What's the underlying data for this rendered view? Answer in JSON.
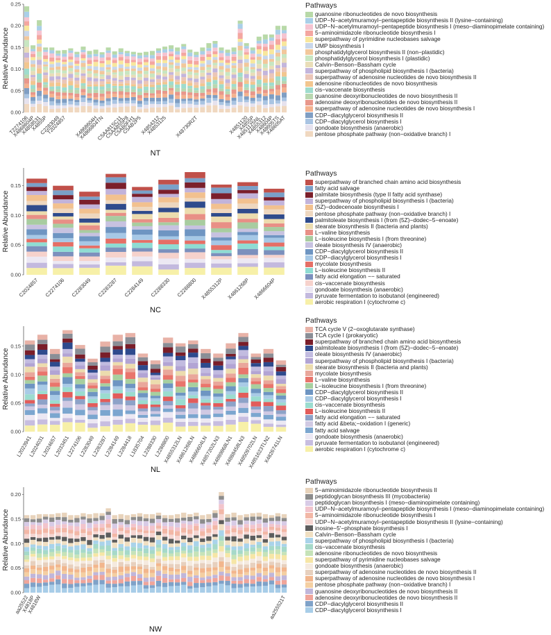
{
  "palette": [
    "#f6e7a2",
    "#c4b7dc",
    "#ebe7f3",
    "#f3cfc6",
    "#a9d7ee",
    "#6f9ec9",
    "#e48a7c",
    "#a8d8c6",
    "#92e0d6",
    "#c6c0de",
    "#82a7cc",
    "#f2a598",
    "#abd4a0",
    "#f4c98a",
    "#e3d2bd",
    "#c0d3e9",
    "#8d8d8d",
    "#ddb2b6",
    "#f2c49a",
    "#2e4b8f",
    "#7a1f2a",
    "#b65048",
    "#e8d3bb",
    "#d9d1e7"
  ],
  "panels": [
    {
      "group": "NT",
      "ylabel": "Relative Abundance",
      "y_ticks": [
        "0.00",
        "0.05",
        "0.10",
        "0.15",
        "0.20",
        "0.25"
      ],
      "legend_title": "Pathways",
      "chart_data": {
        "type": "bar",
        "stacked": true,
        "ylim": [
          0,
          0.25
        ],
        "categories": [
          "T2274106",
          "X4868604P",
          "X4858531",
          "X4855P",
          "",
          "C2283049",
          "T2024857",
          "",
          "",
          "",
          "",
          "X4868604H",
          "X4866804TN",
          "",
          "",
          "C5AA81SC11",
          "C5AAB55P8",
          "C5AB0FH1",
          "C5AB2P5",
          "",
          "",
          "X4854312",
          "X4853125",
          "",
          "",
          "",
          "",
          "X48730R2T",
          "",
          "",
          "",
          "",
          "",
          "",
          "",
          "X4851120",
          "X4855P",
          "X4851125NL",
          "X4855312",
          "X48604P",
          "X48605TS",
          "X48605AT"
        ],
        "totals": [
          0.245,
          0.155,
          0.213,
          0.15,
          0.15,
          0.143,
          0.144,
          0.148,
          0.14,
          0.152,
          0.142,
          0.145,
          0.139,
          0.15,
          0.141,
          0.148,
          0.142,
          0.14,
          0.138,
          0.14,
          0.142,
          0.148,
          0.152,
          0.155,
          0.15,
          0.158,
          0.145,
          0.14,
          0.15,
          0.16,
          0.165,
          0.15,
          0.145,
          0.15,
          0.212,
          0.16,
          0.15,
          0.175,
          0.18,
          0.18,
          0.2,
          0.2
        ],
        "series": [
          {
            "name": "guanosine ribonucleotides de novo biosynthesis",
            "color": "#b8d9a8"
          },
          {
            "name": "UDP−N−acetylmuramoyl−pentapeptide biosynthesis II (lysine−containing)",
            "color": "#a9cfe8"
          },
          {
            "name": "UDP−N−acetylmuramoyl−pentapeptide biosynthesis I (meso−diaminopimelate containing)",
            "color": "#f5c4d1"
          },
          {
            "name": "5−aminoimidazole ribonucleotide biosynthesis I",
            "color": "#f4a6a0"
          },
          {
            "name": "superpathway of pyrimidine nucleobases salvage",
            "color": "#f8e79c"
          },
          {
            "name": "UMP biosynthesis I",
            "color": "#c8d6ea"
          },
          {
            "name": "phosphatidylglycerol biosynthesis II (non−plastidic)",
            "color": "#f2c79b"
          },
          {
            "name": "phosphatidylglycerol biosynthesis I (plastidic)",
            "color": "#c8e6c2"
          },
          {
            "name": "Calvin−Benson−Bassham cycle",
            "color": "#e9ddb8"
          },
          {
            "name": "superpathway of phospholipid biosynthesis I (bacteria)",
            "color": "#c3b5dc"
          },
          {
            "name": "superpathway of adenosine nucleotides de novo biosynthesis II",
            "color": "#ebc6b8"
          },
          {
            "name": "adenosine ribonucleotides de novo biosynthesis",
            "color": "#f2c68f"
          },
          {
            "name": "cis−vaccenate biosynthesis",
            "color": "#9fdccd"
          },
          {
            "name": "guanosine deoxyribonucleotides de novo biosynthesis II",
            "color": "#b9d7b0"
          },
          {
            "name": "adenosine deoxyribonucleotides de novo biosynthesis II",
            "color": "#e8978b"
          },
          {
            "name": "superpathway of adenosine nucleotides de novo biosynthesis I",
            "color": "#f4b28f"
          },
          {
            "name": "CDP−diacylglycerol biosynthesis II",
            "color": "#7f9ec3"
          },
          {
            "name": "CDP−diacylglycerol biosynthesis I",
            "color": "#a9c4e2"
          },
          {
            "name": "gondoate biosynthesis (anaerobic)",
            "color": "#e6e2ee"
          },
          {
            "name": "pentose phosphate pathway (non−oxidative branch) I",
            "color": "#f0d8c0"
          }
        ]
      }
    },
    {
      "group": "NC",
      "ylabel": "Relative Abundance",
      "y_ticks": [
        "0.00",
        "0.05",
        "0.10",
        "0.15"
      ],
      "legend_title": "Pathways",
      "chart_data": {
        "type": "bar",
        "stacked": true,
        "ylim": [
          0,
          0.18
        ],
        "categories": [
          "C2024857",
          "C2274106",
          "C2283049",
          "C2283287",
          "C2284149",
          "C2288330",
          "C2288800",
          "X4855312P",
          "X4861268P",
          "X4866604P"
        ],
        "totals": [
          0.162,
          0.15,
          0.14,
          0.17,
          0.148,
          0.16,
          0.173,
          0.152,
          0.156,
          0.145
        ],
        "series": [
          {
            "name": "superpathway of branched chain amino acid biosynthesis",
            "color": "#c0504a"
          },
          {
            "name": "fatty acid salvage",
            "color": "#7aa0c8"
          },
          {
            "name": "palmitate biosynthesis (type II fatty acid synthase)",
            "color": "#7b1f2b"
          },
          {
            "name": "superpathway of phospholipid biosynthesis I (bacteria)",
            "color": "#c2b3da"
          },
          {
            "name": "(5Z)−dodecenoate biosynthesis I",
            "color": "#f2c18f"
          },
          {
            "name": "pentose phosphate pathway (non−oxidative branch) I",
            "color": "#eed7bf"
          },
          {
            "name": "palmitoleate biosynthesis I (from (5Z)−dodec−5−enoate)",
            "color": "#2f4b8c"
          },
          {
            "name": "stearate biosynthesis II (bacteria and plants)",
            "color": "#ecdcae"
          },
          {
            "name": "L−valine biosynthesis",
            "color": "#e88f86"
          },
          {
            "name": "L−isoleucine biosynthesis I (from threonine)",
            "color": "#a8cca0"
          },
          {
            "name": "oleate biosynthesis IV (anaerobic)",
            "color": "#c7c2e0"
          },
          {
            "name": "CDP−diacylglycerol biosynthesis II",
            "color": "#6e95c2"
          },
          {
            "name": "CDP−diacylglycerol biosynthesis I",
            "color": "#a6c8e6"
          },
          {
            "name": "mycolate biosynthesis",
            "color": "#e56f66"
          },
          {
            "name": "L−isoleucine biosynthesis II",
            "color": "#8fdcd3"
          },
          {
            "name": "fatty acid elongation −− saturated",
            "color": "#7c90bd"
          },
          {
            "name": "cis−vaccenate biosynthesis",
            "color": "#f6d2cc"
          },
          {
            "name": "gondoate biosynthesis (anaerobic)",
            "color": "#ece8f3"
          },
          {
            "name": "pyruvate fermentation to isobutanol (engineered)",
            "color": "#c3b9de"
          },
          {
            "name": "aerobic respiration I (cytochrome c)",
            "color": "#f7f0a8"
          }
        ]
      }
    },
    {
      "group": "NL",
      "ylabel": "Relative Abundance",
      "y_ticks": [
        "0.00",
        "0.05",
        "0.10",
        "0.15"
      ],
      "legend_title": "Pathways",
      "chart_data": {
        "type": "bar",
        "stacked": true,
        "ylim": [
          0,
          0.185
        ],
        "categories": [
          "L2023941",
          "L2024031",
          "L2024657",
          "L2033451",
          "L2274106",
          "L2283049",
          "L2283287",
          "L2284149",
          "L2284418",
          "L1835704",
          "L2288330",
          "L2288800",
          "X4855312LN",
          "X4861268LN",
          "X4866604LN",
          "X4857202LN3",
          "X4889868LN1",
          "X4888458LN3",
          "X48509702LN",
          "X4851623TLN2",
          "X4826741LN"
        ],
        "totals": [
          0.16,
          0.17,
          0.145,
          0.178,
          0.152,
          0.128,
          0.158,
          0.17,
          0.173,
          0.137,
          0.125,
          0.165,
          0.155,
          0.16,
          0.145,
          0.137,
          0.155,
          0.173,
          0.137,
          0.145,
          0.125
        ],
        "series": [
          {
            "name": "TCA cycle V (2−oxoglutarate synthase)",
            "color": "#e8b2a7"
          },
          {
            "name": "TCA cycle I (prokaryotic)",
            "color": "#8a8e96"
          },
          {
            "name": "superpathway of branched chain amino acid biosynthesis",
            "color": "#7a1e29"
          },
          {
            "name": "palmitoleate biosynthesis I (from (5Z)−dodec−5−enoate)",
            "color": "#2e4a8d"
          },
          {
            "name": "oleate biosynthesis IV (anaerobic)",
            "color": "#c2bbe0"
          },
          {
            "name": "superpathway of phospholipid biosynthesis I (bacteria)",
            "color": "#b2a4d4"
          },
          {
            "name": "stearate biosynthesis II (bacteria and plants)",
            "color": "#ecdcae"
          },
          {
            "name": "mycolate biosynthesis",
            "color": "#e9a79b"
          },
          {
            "name": "L−valine biosynthesis",
            "color": "#e9756c"
          },
          {
            "name": "L−isoleucine biosynthesis I (from threonine)",
            "color": "#a7cf9f"
          },
          {
            "name": "CDP−diacylglycerol biosynthesis II",
            "color": "#6e95c2"
          },
          {
            "name": "CDP−diacylglycerol biosynthesis I",
            "color": "#a9cbe6"
          },
          {
            "name": "cis−vaccenate biosynthesis",
            "color": "#9bdccf"
          },
          {
            "name": "L−isoleucine biosynthesis II",
            "color": "#e25c5a"
          },
          {
            "name": "fatty acid elongation −− saturated",
            "color": "#8da2c8"
          },
          {
            "name": "fatty acid &beta;−oxidation I (generic)",
            "color": "#d0c9e3"
          },
          {
            "name": "fatty acid salvage",
            "color": "#7ba6cf"
          },
          {
            "name": "gondoate biosynthesis (anaerobic)",
            "color": "#ece8f3"
          },
          {
            "name": "pyruvate fermentation to isobutanol (engineered)",
            "color": "#c7bde0"
          },
          {
            "name": "aerobic respiration I (cytochrome c)",
            "color": "#f7f0a8"
          }
        ]
      }
    },
    {
      "group": "NW",
      "ylabel": "Relative Abundance",
      "y_ticks": [
        "0.00",
        "0.05",
        "0.10",
        "0.15",
        "0.20"
      ],
      "legend_title": "Pathways",
      "chart_data": {
        "type": "bar",
        "stacked": true,
        "ylim": [
          0,
          0.215
        ],
        "categories": [
          "aa25522",
          "X4818P",
          "X4818W",
          "",
          "",
          "",
          "",
          "",
          "",
          "",
          "",
          "",
          "",
          "",
          "",
          "",
          "",
          "",
          "",
          "",
          "",
          "",
          "",
          "",
          "",
          "",
          "",
          "",
          "",
          "",
          "",
          "",
          "",
          "",
          "",
          "",
          "",
          "",
          "",
          "",
          "",
          "aa255521T"
        ],
        "totals": [
          0.158,
          0.158,
          0.16,
          0.16,
          0.16,
          0.162,
          0.163,
          0.158,
          0.158,
          0.162,
          0.16,
          0.162,
          0.162,
          0.172,
          0.158,
          0.16,
          0.158,
          0.16,
          0.162,
          0.16,
          0.16,
          0.163,
          0.158,
          0.158,
          0.16,
          0.163,
          0.16,
          0.163,
          0.158,
          0.16,
          0.168,
          0.205,
          0.16,
          0.163,
          0.158,
          0.16,
          0.162,
          0.163,
          0.16,
          0.158,
          0.162,
          0.16
        ],
        "series": [
          {
            "name": "5−aminoimidazole ribonucleotide biosynthesis II",
            "color": "#e8d3bb"
          },
          {
            "name": "peptidoglycan biosynthesis III (mycobacteria)",
            "color": "#8c8c8c"
          },
          {
            "name": "peptidoglycan biosynthesis I (meso−diaminopimelate containing)",
            "color": "#d8cbe6"
          },
          {
            "name": "UDP−N−acetylmuramoyl−pentapeptide biosynthesis I (meso−diaminopimelate containing)",
            "color": "#f2c4cc"
          },
          {
            "name": "5−aminoimidazole ribonucleotide biosynthesis I",
            "color": "#f2b7a6"
          },
          {
            "name": "UDP−N−acetylmuramoyl−pentapeptide biosynthesis II (lysine−containing)",
            "color": "#f6d6d2"
          },
          {
            "name": "inosine−5'−phosphate biosynthesis I",
            "color": "#5d5d5d"
          },
          {
            "name": "Calvin−Benson−Bassham cycle",
            "color": "#f0dfc2"
          },
          {
            "name": "superpathway of phospholipid biosynthesis I (bacteria)",
            "color": "#a9d3ea"
          },
          {
            "name": "cis−vaccenate biosynthesis",
            "color": "#a6d9c9"
          },
          {
            "name": "adenosine ribonucleotides de novo biosynthesis",
            "color": "#c6e3b8"
          },
          {
            "name": "superpathway of pyrimidine nucleobases salvage",
            "color": "#f6e6a6"
          },
          {
            "name": "gondoate biosynthesis (anaerobic)",
            "color": "#f5eadf"
          },
          {
            "name": "superpathway of adenosine nucleotides de novo biosynthesis II",
            "color": "#e7d0be"
          },
          {
            "name": "superpathway of adenosine nucleotides de novo biosynthesis I",
            "color": "#f2b68d"
          },
          {
            "name": "pentose phosphate pathway (non−oxidative branch) I",
            "color": "#f4cfa2"
          },
          {
            "name": "guanosine deoxyribonucleotides de novo biosynthesis II",
            "color": "#c0b6da"
          },
          {
            "name": "adenosine deoxyribonucleotides de novo biosynthesis II",
            "color": "#f0a59a"
          },
          {
            "name": "CDP−diacylglycerol biosynthesis II",
            "color": "#7fa2c8"
          },
          {
            "name": "CDP−diacylglycerol biosynthesis I",
            "color": "#a8cde8"
          }
        ]
      }
    }
  ]
}
